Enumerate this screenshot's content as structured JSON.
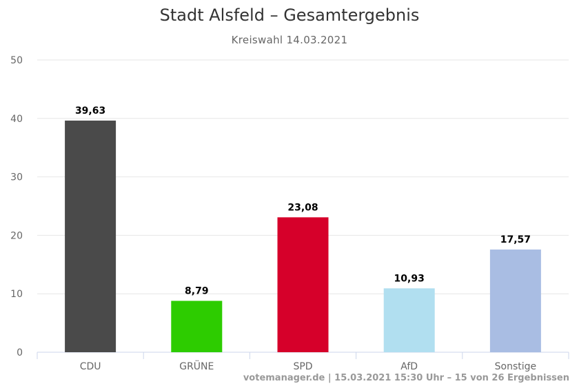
{
  "chart_data": {
    "type": "bar",
    "title": "Stadt Alsfeld – Gesamtergebnis",
    "subtitle": "Kreiswahl 14.03.2021",
    "categories": [
      "CDU",
      "GRÜNE",
      "SPD",
      "AfD",
      "Sonstige"
    ],
    "values": [
      39.63,
      8.79,
      23.08,
      10.93,
      17.57
    ],
    "data_labels": [
      "39,63",
      "8,79",
      "23,08",
      "10,93",
      "17,57"
    ],
    "colors": [
      "#4a4a4a",
      "#2dcc00",
      "#d6002a",
      "#b1dff0",
      "#a9bde3"
    ],
    "ylim": [
      0,
      50
    ],
    "yticks": [
      0,
      10,
      20,
      30,
      40,
      50
    ],
    "xlabel": "",
    "ylabel": "",
    "grid": true,
    "legend": "none"
  },
  "credits": "votemanager.de | 15.03.2021 15:30 Uhr – 15 von 26 Ergebnissen"
}
